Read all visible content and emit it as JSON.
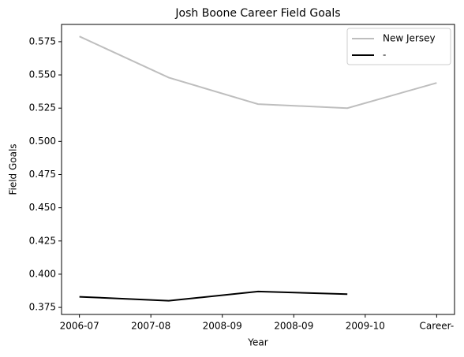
{
  "chart_data": {
    "type": "line",
    "title": "Josh Boone  Career Field Goals",
    "xlabel": "Year",
    "ylabel": "Field Goals",
    "x": [
      0,
      1.25,
      2.5,
      3.75,
      5
    ],
    "series": [
      {
        "name": "New Jersey",
        "color": "#bebebe",
        "values": [
          0.579,
          0.548,
          0.528,
          0.525,
          0.544
        ]
      },
      {
        "name": "-",
        "color": "#000000",
        "values": [
          0.383,
          0.38,
          0.387,
          0.385,
          null
        ]
      }
    ],
    "xlim": [
      -0.25,
      5.25
    ],
    "xticks": [
      {
        "value": 0,
        "label": "2006-07"
      },
      {
        "value": 1,
        "label": "2007-08"
      },
      {
        "value": 2,
        "label": "2008-09"
      },
      {
        "value": 3,
        "label": "2008-09"
      },
      {
        "value": 4,
        "label": "2009-10"
      },
      {
        "value": 5,
        "label": "Career-"
      }
    ],
    "ylim": [
      0.3697,
      0.588
    ],
    "yticks": [
      0.375,
      {
        "value": 0.4,
        "label": "0.400"
      },
      0.425,
      {
        "value": 0.45,
        "label": "0.450"
      },
      0.475,
      {
        "value": 0.5,
        "label": "0.500"
      },
      0.525,
      {
        "value": 0.55,
        "label": "0.550"
      },
      0.575
    ],
    "legend": "upper right",
    "grid": false
  }
}
